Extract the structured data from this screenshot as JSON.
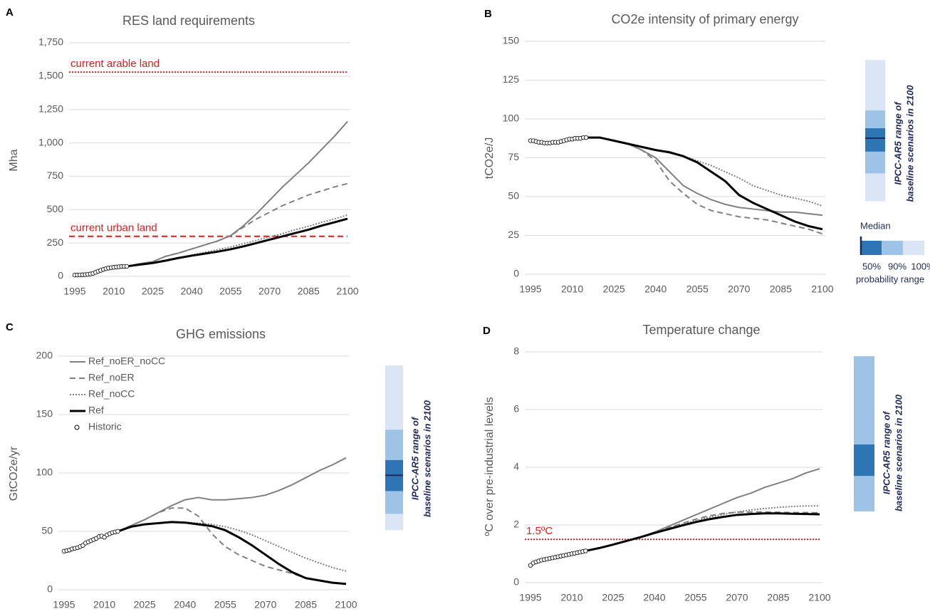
{
  "chart_data": [
    {
      "type": "line",
      "panel": "A",
      "title": "RES land requirements",
      "ylabel": "Mha",
      "xlim": [
        1995,
        2100
      ],
      "xticks": [
        1995,
        2010,
        2025,
        2040,
        2055,
        2070,
        2085,
        2100
      ],
      "ylim": [
        0,
        1750
      ],
      "yticks": [
        0,
        250,
        500,
        750,
        {
          "value": 1000,
          "label": "1,000"
        },
        {
          "value": 1250,
          "label": "1,250"
        },
        {
          "value": 1500,
          "label": "1,500"
        },
        {
          "value": 1750,
          "label": "1,750"
        }
      ],
      "grid": true,
      "x": [
        2015,
        2020,
        2025,
        2030,
        2035,
        2040,
        2045,
        2050,
        2055,
        2060,
        2065,
        2070,
        2075,
        2080,
        2085,
        2090,
        2095,
        2100
      ],
      "series": [
        {
          "color": "#808080",
          "dash": "solid",
          "values": [
            75,
            95,
            110,
            150,
            175,
            205,
            235,
            265,
            305,
            380,
            470,
            570,
            670,
            760,
            850,
            950,
            1050,
            1160
          ]
        },
        {
          "color": "#808080",
          "dash": "dashed",
          "values": [
            75,
            95,
            110,
            150,
            175,
            205,
            235,
            265,
            305,
            370,
            430,
            480,
            530,
            570,
            610,
            640,
            670,
            695
          ]
        },
        {
          "color": "#808080",
          "dash": "dotted",
          "values": [
            75,
            90,
            100,
            120,
            140,
            160,
            180,
            200,
            220,
            245,
            270,
            295,
            320,
            350,
            375,
            405,
            430,
            460
          ]
        },
        {
          "color": "#000000",
          "dash": "solid",
          "values": [
            75,
            88,
            100,
            118,
            138,
            155,
            170,
            185,
            203,
            225,
            250,
            275,
            300,
            325,
            350,
            380,
            405,
            432
          ]
        }
      ],
      "historic": {
        "x": [
          1995,
          1996,
          1997,
          1998,
          1999,
          2000,
          2001,
          2002,
          2003,
          2004,
          2005,
          2006,
          2007,
          2008,
          2009,
          2010,
          2011,
          2012,
          2013,
          2014,
          2015
        ],
        "values": [
          10,
          10,
          11,
          12,
          13,
          15,
          18,
          22,
          30,
          38,
          45,
          52,
          58,
          62,
          65,
          68,
          70,
          72,
          74,
          75,
          75
        ]
      },
      "reference_lines": [
        {
          "value": 1530,
          "label": "current arable land",
          "dash": "dotted",
          "color": "#e31a1c"
        },
        {
          "value": 300,
          "label": "current urban land",
          "dash": "dashed",
          "color": "#e31a1c"
        }
      ]
    },
    {
      "type": "line",
      "panel": "B",
      "title": "CO2e intensity of primary energy",
      "ylabel": "tCO2e/J",
      "xlim": [
        1995,
        2100
      ],
      "xticks": [
        1995,
        2010,
        2025,
        2040,
        2055,
        2070,
        2085,
        2100
      ],
      "ylim": [
        0,
        150
      ],
      "yticks": [
        0,
        25,
        50,
        75,
        100,
        125,
        150
      ],
      "grid": true,
      "x": [
        2015,
        2020,
        2025,
        2030,
        2035,
        2040,
        2045,
        2050,
        2055,
        2060,
        2065,
        2070,
        2075,
        2080,
        2085,
        2090,
        2095,
        2100
      ],
      "series": [
        {
          "color": "#808080",
          "dash": "solid",
          "values": [
            88,
            88,
            86,
            84,
            80,
            75,
            66,
            57,
            52,
            48,
            45,
            43,
            42,
            41,
            40,
            40,
            39,
            38
          ]
        },
        {
          "color": "#808080",
          "dash": "dashed",
          "values": [
            88,
            88,
            86,
            84,
            80,
            73,
            60,
            52,
            45,
            41,
            39,
            37,
            36,
            35,
            33,
            31,
            29,
            26
          ]
        },
        {
          "color": "#808080",
          "dash": "dotted",
          "values": [
            88,
            88,
            86,
            84,
            82,
            80,
            79,
            76,
            73,
            70,
            66,
            62,
            57,
            54,
            51,
            49,
            47,
            44
          ]
        },
        {
          "color": "#000000",
          "dash": "solid",
          "values": [
            88,
            88,
            86,
            84,
            82,
            80,
            78.5,
            76,
            72,
            66,
            60,
            51,
            46,
            42,
            38,
            34,
            31,
            29
          ]
        }
      ],
      "historic": {
        "x": [
          1995,
          1996,
          1997,
          1998,
          1999,
          2000,
          2001,
          2002,
          2003,
          2004,
          2005,
          2006,
          2007,
          2008,
          2009,
          2010,
          2011,
          2012,
          2013,
          2014,
          2015
        ],
        "values": [
          86,
          86,
          85.5,
          85,
          85,
          84.5,
          84.5,
          84.5,
          85,
          85,
          85,
          85.5,
          86,
          86.5,
          87,
          87,
          87.5,
          87.5,
          87.5,
          88,
          88
        ]
      },
      "range": {
        "label": [
          "IPCC-AR5 range of",
          "baseline scenarios in 2100"
        ],
        "p100": [
          47,
          138
        ],
        "p90": [
          65,
          105.5
        ],
        "p50": [
          79,
          94
        ],
        "median": 87.6
      },
      "probability_legend": {
        "title": "Median",
        "labels": [
          "50%",
          "90%",
          "100%"
        ],
        "caption": "probability range"
      }
    },
    {
      "type": "line",
      "panel": "C",
      "title": "GHG emissions",
      "ylabel": "GtCO2e/yr",
      "xlim": [
        1995,
        2100
      ],
      "xticks": [
        1995,
        2010,
        2025,
        2040,
        2055,
        2070,
        2085,
        2100
      ],
      "ylim": [
        0,
        200
      ],
      "yticks": [
        0,
        50,
        100,
        150,
        200
      ],
      "grid": true,
      "legend": "upper left",
      "x": [
        2015,
        2020,
        2025,
        2030,
        2035,
        2040,
        2045,
        2050,
        2055,
        2060,
        2065,
        2070,
        2075,
        2080,
        2085,
        2090,
        2095,
        2100
      ],
      "series": [
        {
          "name": "Ref_noER_noCC",
          "color": "#808080",
          "dash": "solid",
          "values": [
            50,
            55,
            60,
            66,
            72,
            77,
            79,
            77,
            77,
            78,
            79,
            81,
            85,
            90,
            96,
            102,
            107,
            113
          ]
        },
        {
          "name": "Ref_noER",
          "color": "#808080",
          "dash": "dashed",
          "values": [
            50,
            55,
            60,
            66,
            70,
            70,
            63,
            48,
            37,
            30,
            25,
            20,
            17,
            14,
            10,
            8,
            6,
            5
          ]
        },
        {
          "name": "Ref_noCC",
          "color": "#808080",
          "dash": "dotted",
          "values": [
            50,
            54,
            56,
            57,
            58,
            58,
            57,
            56,
            54,
            51,
            47,
            42,
            37,
            32,
            27,
            23,
            19,
            16
          ]
        },
        {
          "name": "Ref",
          "color": "#000000",
          "dash": "solid",
          "values": [
            50,
            54,
            56,
            57,
            58,
            57.5,
            56,
            54.5,
            51,
            45,
            38,
            30,
            22,
            15,
            10,
            8,
            6,
            5
          ]
        }
      ],
      "historic": {
        "name": "Historic",
        "x": [
          1995,
          1996,
          1997,
          1998,
          1999,
          2000,
          2001,
          2002,
          2003,
          2004,
          2005,
          2006,
          2007,
          2008,
          2009,
          2010,
          2011,
          2012,
          2013,
          2014,
          2015
        ],
        "values": [
          33,
          33.5,
          34,
          35,
          35.5,
          36,
          37,
          38,
          40,
          41,
          42,
          43,
          44,
          45.5,
          46,
          45,
          47,
          48,
          49,
          49.5,
          50
        ]
      },
      "range": {
        "label": [
          "IPCC-AR5 range of",
          "baseline scenarios in 2100"
        ],
        "p100": [
          51,
          192
        ],
        "p90": [
          65,
          137
        ],
        "p50": [
          84.5,
          111
        ],
        "median": 98
      }
    },
    {
      "type": "line",
      "panel": "D",
      "title": "Temperature change",
      "ylabel": "ºC over pre-industrial levels",
      "xlim": [
        1995,
        2100
      ],
      "xticks": [
        1995,
        2010,
        2025,
        2040,
        2055,
        2070,
        2085,
        2100
      ],
      "ylim": [
        0,
        8
      ],
      "yticks": [
        0,
        2,
        4,
        6,
        8
      ],
      "grid": true,
      "x": [
        2015,
        2020,
        2025,
        2030,
        2035,
        2040,
        2045,
        2050,
        2055,
        2060,
        2065,
        2070,
        2075,
        2080,
        2085,
        2090,
        2095,
        2100
      ],
      "series": [
        {
          "color": "#808080",
          "dash": "solid",
          "values": [
            1.1,
            1.2,
            1.32,
            1.45,
            1.58,
            1.75,
            1.95,
            2.15,
            2.35,
            2.55,
            2.75,
            2.95,
            3.1,
            3.3,
            3.45,
            3.6,
            3.8,
            3.95
          ]
        },
        {
          "color": "#808080",
          "dash": "dashed",
          "values": [
            1.1,
            1.2,
            1.32,
            1.45,
            1.58,
            1.73,
            1.9,
            2.05,
            2.2,
            2.32,
            2.4,
            2.44,
            2.45,
            2.45,
            2.44,
            2.43,
            2.43,
            2.42
          ]
        },
        {
          "color": "#808080",
          "dash": "dotted",
          "values": [
            1.1,
            1.2,
            1.32,
            1.45,
            1.58,
            1.72,
            1.88,
            2.02,
            2.15,
            2.27,
            2.37,
            2.45,
            2.52,
            2.57,
            2.61,
            2.64,
            2.66,
            2.66
          ]
        },
        {
          "color": "#000000",
          "dash": "solid",
          "values": [
            1.1,
            1.2,
            1.32,
            1.45,
            1.58,
            1.72,
            1.85,
            1.98,
            2.1,
            2.2,
            2.28,
            2.35,
            2.38,
            2.4,
            2.4,
            2.39,
            2.38,
            2.37
          ]
        }
      ],
      "historic": {
        "x": [
          1995,
          1996,
          1997,
          1998,
          1999,
          2000,
          2001,
          2002,
          2003,
          2004,
          2005,
          2006,
          2007,
          2008,
          2009,
          2010,
          2011,
          2012,
          2013,
          2014,
          2015
        ],
        "values": [
          0.6,
          0.68,
          0.72,
          0.75,
          0.78,
          0.8,
          0.82,
          0.84,
          0.86,
          0.88,
          0.9,
          0.92,
          0.94,
          0.96,
          0.98,
          1.0,
          1.02,
          1.04,
          1.06,
          1.08,
          1.1
        ]
      },
      "reference_lines": [
        {
          "value": 1.5,
          "label": "1.5ºC",
          "dash": "dotted",
          "color": "#e31a1c"
        }
      ],
      "range": {
        "label": [
          "IPCC-AR5 range of",
          "baseline scenarios in 2100"
        ],
        "p90": [
          2.47,
          7.85
        ],
        "p50": [
          3.7,
          4.79
        ]
      }
    }
  ]
}
